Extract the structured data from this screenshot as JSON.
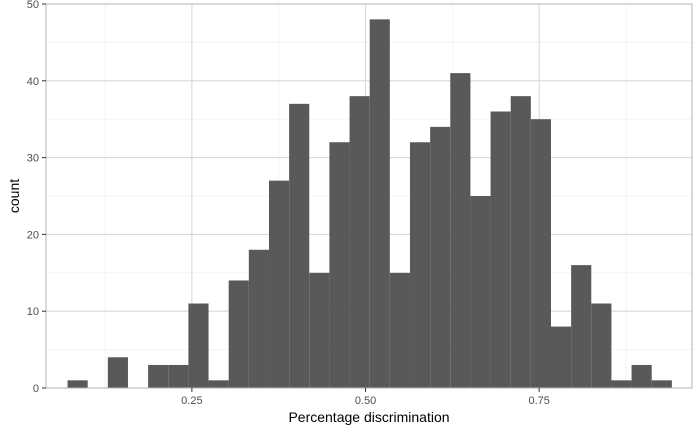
{
  "chart_data": {
    "type": "bar",
    "subtype": "histogram",
    "xlabel": "Percentage discrimination",
    "ylabel": "count",
    "xlim": [
      0.04,
      0.97
    ],
    "ylim": [
      0,
      50
    ],
    "x_ticks": [
      0.25,
      0.5,
      0.75
    ],
    "x_tick_labels": [
      "0.25",
      "0.50",
      "0.75"
    ],
    "y_ticks": [
      0,
      10,
      20,
      30,
      40,
      50
    ],
    "y_tick_labels": [
      "0",
      "10",
      "20",
      "30",
      "40",
      "50"
    ],
    "bins": [
      {
        "x0": 0.071,
        "x1": 0.1,
        "count": 1
      },
      {
        "x0": 0.1,
        "x1": 0.129,
        "count": 0
      },
      {
        "x0": 0.129,
        "x1": 0.158,
        "count": 4
      },
      {
        "x0": 0.158,
        "x1": 0.187,
        "count": 0
      },
      {
        "x0": 0.187,
        "x1": 0.216,
        "count": 3
      },
      {
        "x0": 0.216,
        "x1": 0.245,
        "count": 3
      },
      {
        "x0": 0.245,
        "x1": 0.274,
        "count": 11
      },
      {
        "x0": 0.274,
        "x1": 0.303,
        "count": 1
      },
      {
        "x0": 0.303,
        "x1": 0.332,
        "count": 14
      },
      {
        "x0": 0.332,
        "x1": 0.361,
        "count": 18
      },
      {
        "x0": 0.361,
        "x1": 0.39,
        "count": 27
      },
      {
        "x0": 0.39,
        "x1": 0.419,
        "count": 37
      },
      {
        "x0": 0.419,
        "x1": 0.448,
        "count": 15
      },
      {
        "x0": 0.448,
        "x1": 0.477,
        "count": 32
      },
      {
        "x0": 0.477,
        "x1": 0.506,
        "count": 38
      },
      {
        "x0": 0.506,
        "x1": 0.535,
        "count": 48
      },
      {
        "x0": 0.535,
        "x1": 0.564,
        "count": 15
      },
      {
        "x0": 0.564,
        "x1": 0.593,
        "count": 32
      },
      {
        "x0": 0.593,
        "x1": 0.622,
        "count": 34
      },
      {
        "x0": 0.622,
        "x1": 0.651,
        "count": 41
      },
      {
        "x0": 0.651,
        "x1": 0.68,
        "count": 25
      },
      {
        "x0": 0.68,
        "x1": 0.709,
        "count": 36
      },
      {
        "x0": 0.709,
        "x1": 0.738,
        "count": 38
      },
      {
        "x0": 0.738,
        "x1": 0.767,
        "count": 35
      },
      {
        "x0": 0.767,
        "x1": 0.796,
        "count": 8
      },
      {
        "x0": 0.796,
        "x1": 0.825,
        "count": 16
      },
      {
        "x0": 0.825,
        "x1": 0.854,
        "count": 11
      },
      {
        "x0": 0.854,
        "x1": 0.883,
        "count": 1
      },
      {
        "x0": 0.883,
        "x1": 0.912,
        "count": 3
      },
      {
        "x0": 0.912,
        "x1": 0.941,
        "count": 1
      }
    ],
    "grid": true,
    "legend": "none",
    "colors": {
      "bar": "#595959",
      "grid_major": "#d9d9d9",
      "grid_minor": "#ececec",
      "panel_border": "#b3b3b3",
      "tick_text": "#4d4d4d",
      "axis_title": "#000000"
    }
  }
}
